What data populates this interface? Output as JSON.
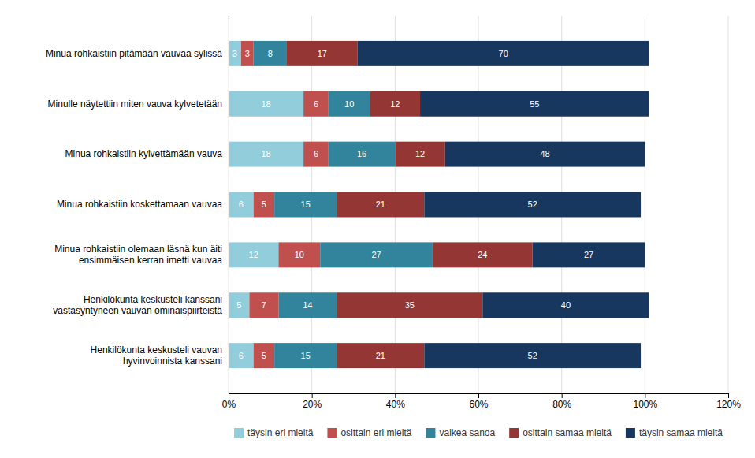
{
  "chart_data": {
    "type": "bar",
    "orientation": "horizontal",
    "stacked": true,
    "data_labels": true,
    "grid": true,
    "legend": "bottom",
    "categories": [
      "Minua rohkaistiin pitämään vauvaa sylissä",
      "Minulle näytettiin miten vauva kylvetetään",
      "Minua rohkaistiin kylvettämään vauva",
      "Minua rohkaistiin koskettamaan vauvaa",
      "Minua rohkaistiin olemaan läsnä kun äiti\nensimmäisen kerran imetti vauvaa",
      "Henkilökunta keskusteli kanssani\nvastasyntyneen vauvan ominaispiirteistä",
      "Henkilökunta keskusteli vauvan\nhyvinvoinnista kanssani"
    ],
    "series": [
      {
        "name": "täysin eri mieltä",
        "color": "#92CDDC",
        "values": [
          3,
          18,
          18,
          6,
          12,
          5,
          6
        ]
      },
      {
        "name": "osittain eri mieltä",
        "color": "#C0504D",
        "values": [
          3,
          6,
          6,
          5,
          10,
          7,
          5
        ]
      },
      {
        "name": "vaikea sanoa",
        "color": "#31849B",
        "values": [
          8,
          10,
          16,
          15,
          27,
          14,
          15
        ]
      },
      {
        "name": "osittain samaa mieltä",
        "color": "#943634",
        "values": [
          17,
          12,
          12,
          21,
          24,
          35,
          21
        ]
      },
      {
        "name": "täysin samaa mieltä",
        "color": "#17375E",
        "values": [
          70,
          55,
          48,
          52,
          27,
          40,
          52
        ]
      }
    ],
    "xlim": [
      0,
      120
    ],
    "xticks": [
      {
        "value": 0,
        "label": "0%"
      },
      {
        "value": 20,
        "label": "20%"
      },
      {
        "value": 40,
        "label": "40%"
      },
      {
        "value": 60,
        "label": "60%"
      },
      {
        "value": 80,
        "label": "80%"
      },
      {
        "value": 100,
        "label": "100%"
      },
      {
        "value": 120,
        "label": "120%"
      }
    ]
  }
}
